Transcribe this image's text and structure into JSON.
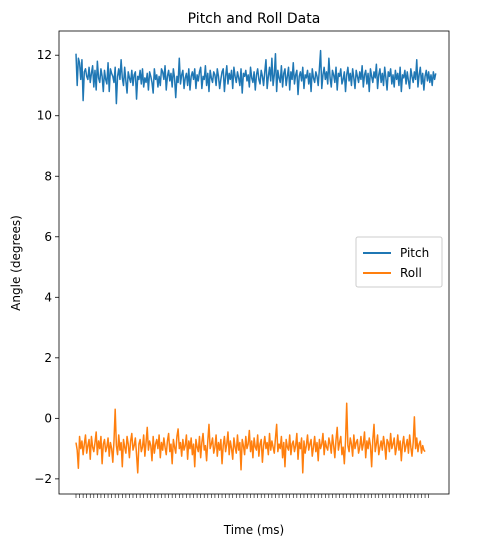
{
  "chart_data": {
    "type": "line",
    "title": "Pitch and Roll Data",
    "xlabel": "Time (ms)",
    "ylabel": "Angle (degrees)",
    "ylim": [
      -2.5,
      12.8
    ],
    "yticks": [
      "−2",
      "0",
      "2",
      "4",
      "6",
      "8",
      "10",
      "12"
    ],
    "ytick_values": [
      -2,
      0,
      2,
      4,
      6,
      8,
      10,
      12
    ],
    "x_count": 300,
    "legend_position": "center-right",
    "series": [
      {
        "name": "Pitch",
        "color": "#1f77b4",
        "values": [
          12.05,
          11.0,
          11.9,
          11.75,
          11.2,
          11.85,
          10.5,
          11.45,
          11.55,
          11.3,
          11.2,
          11.6,
          11.1,
          11.4,
          11.65,
          10.95,
          11.5,
          10.85,
          11.8,
          11.25,
          11.1,
          11.55,
          11.3,
          10.8,
          11.5,
          11.2,
          11.05,
          11.75,
          10.8,
          11.55,
          11.4,
          11.3,
          11.1,
          11.6,
          10.4,
          11.3,
          11.55,
          11.2,
          11.85,
          11.25,
          11.0,
          11.6,
          11.15,
          10.75,
          11.45,
          11.25,
          11.1,
          11.5,
          11.0,
          11.35,
          11.45,
          10.55,
          11.3,
          11.2,
          11.5,
          11.05,
          11.55,
          10.95,
          11.25,
          11.1,
          11.4,
          10.85,
          11.45,
          11.3,
          11.1,
          10.75,
          11.55,
          11.2,
          11.35,
          10.95,
          11.3,
          11.0,
          11.55,
          11.45,
          11.2,
          11.65,
          10.85,
          11.3,
          11.5,
          11.15,
          11.4,
          10.95,
          11.55,
          11.25,
          10.6,
          11.3,
          11.1,
          11.9,
          11.05,
          11.35,
          11.5,
          10.9,
          11.25,
          11.4,
          11.0,
          11.55,
          10.85,
          11.3,
          11.45,
          11.2,
          11.55,
          10.9,
          11.35,
          11.15,
          11.45,
          11.6,
          10.9,
          11.3,
          11.2,
          11.65,
          11.0,
          11.4,
          10.8,
          11.5,
          11.25,
          11.1,
          11.45,
          11.35,
          11.0,
          11.55,
          11.3,
          10.9,
          11.2,
          11.45,
          11.55,
          10.8,
          11.3,
          11.65,
          11.05,
          11.4,
          11.2,
          11.5,
          10.9,
          11.6,
          11.3,
          11.1,
          11.45,
          11.25,
          11.0,
          11.55,
          10.75,
          11.4,
          11.3,
          11.5,
          11.15,
          11.35,
          10.95,
          11.6,
          11.25,
          11.1,
          11.45,
          10.85,
          11.35,
          11.55,
          11.2,
          11.05,
          11.5,
          11.3,
          11.0,
          11.45,
          11.85,
          10.9,
          11.3,
          11.6,
          11.15,
          11.9,
          11.0,
          11.35,
          12.05,
          10.8,
          11.5,
          11.25,
          11.1,
          11.65,
          10.95,
          11.4,
          11.55,
          11.0,
          11.3,
          11.6,
          10.85,
          11.45,
          11.2,
          11.75,
          11.05,
          11.35,
          11.5,
          10.7,
          11.3,
          11.45,
          11.15,
          11.6,
          10.9,
          11.35,
          11.25,
          11.5,
          11.05,
          11.4,
          10.8,
          11.55,
          11.25,
          11.1,
          11.45,
          11.3,
          11.0,
          11.55,
          12.15,
          10.9,
          11.35,
          11.6,
          11.2,
          11.45,
          11.05,
          11.9,
          11.25,
          10.95,
          11.5,
          11.35,
          11.1,
          11.6,
          10.85,
          11.4,
          11.3,
          11.55,
          11.05,
          11.2,
          11.45,
          10.8,
          11.35,
          11.6,
          11.15,
          11.4,
          11.0,
          11.55,
          11.25,
          10.9,
          11.5,
          11.3,
          11.1,
          11.45,
          11.2,
          11.65,
          10.95,
          11.35,
          11.5,
          11.05,
          11.4,
          10.8,
          11.55,
          11.3,
          11.1,
          11.45,
          11.25,
          11.7,
          10.9,
          11.35,
          11.55,
          11.1,
          11.4,
          11.0,
          11.6,
          11.25,
          10.85,
          11.45,
          11.3,
          11.55,
          11.05,
          11.35,
          10.95,
          11.5,
          11.2,
          11.4,
          11.0,
          11.6,
          10.8,
          11.35,
          11.25,
          11.5,
          11.05,
          11.45,
          11.15,
          10.9,
          11.55,
          11.3,
          11.1,
          11.45,
          11.2,
          11.85,
          10.95,
          11.35,
          11.6,
          11.05,
          11.4,
          10.85,
          11.3,
          11.5,
          11.15,
          11.45,
          11.1,
          11.35,
          11.0,
          11.45,
          11.2,
          11.4
        ]
      },
      {
        "name": "Roll",
        "color": "#ff7f0e",
        "values": [
          -0.8,
          -1.05,
          -1.65,
          -0.6,
          -1.0,
          -0.75,
          -1.2,
          -0.85,
          -0.55,
          -1.15,
          -0.9,
          -0.7,
          -1.35,
          -0.6,
          -0.95,
          -1.1,
          -0.8,
          -0.45,
          -1.2,
          -0.75,
          -1.0,
          -0.6,
          -1.5,
          -0.85,
          -0.7,
          -1.1,
          -0.95,
          -0.65,
          -1.25,
          -0.8,
          -1.0,
          -1.45,
          -0.75,
          0.3,
          -0.9,
          -1.2,
          -0.55,
          -1.05,
          -0.8,
          -1.6,
          -0.7,
          -0.95,
          -1.15,
          -0.6,
          -0.85,
          -1.3,
          -0.75,
          -0.5,
          -1.05,
          -0.9,
          -0.65,
          -1.2,
          -1.8,
          -0.85,
          -0.7,
          -1.1,
          -0.95,
          -0.55,
          -1.25,
          -0.8,
          -0.3,
          -1.05,
          -0.75,
          -0.9,
          -1.4,
          -0.6,
          -1.15,
          -0.85,
          -0.7,
          -1.0,
          -0.55,
          -1.3,
          -0.8,
          -1.05,
          -0.65,
          -0.95,
          -1.2,
          -0.75,
          -0.5,
          -1.1,
          -0.85,
          -1.5,
          -0.7,
          -0.95,
          -1.15,
          -0.6,
          -0.35,
          -1.0,
          -0.8,
          -1.25,
          -0.7,
          -1.05,
          -0.9,
          -0.55,
          -1.35,
          -0.75,
          -1.0,
          -0.65,
          -1.2,
          -0.85,
          -1.6,
          -0.7,
          -0.95,
          -1.1,
          -0.6,
          -1.3,
          -0.8,
          -0.5,
          -1.05,
          -0.9,
          -1.4,
          -0.75,
          -0.2,
          -1.0,
          -0.85,
          -0.65,
          -1.15,
          -0.95,
          -0.55,
          -1.25,
          -0.8,
          -1.05,
          -0.7,
          -1.5,
          -0.9,
          -0.6,
          -1.1,
          -0.85,
          -0.45,
          -1.2,
          -0.75,
          -1.0,
          -1.35,
          -0.65,
          -0.95,
          -1.15,
          -0.55,
          -1.05,
          -0.8,
          -1.7,
          -0.7,
          -0.9,
          -1.2,
          -0.6,
          -1.0,
          -0.85,
          -0.4,
          -1.1,
          -0.75,
          -1.3,
          -0.65,
          -0.95,
          -1.05,
          -0.55,
          -1.25,
          -0.85,
          -0.7,
          -1.45,
          -0.9,
          -0.6,
          -1.0,
          -0.8,
          -1.2,
          -0.5,
          -1.05,
          -0.75,
          -0.95,
          -1.15,
          -0.65,
          -0.2,
          -1.1,
          -0.85,
          -1.0,
          -0.6,
          -1.3,
          -0.8,
          -1.6,
          -0.7,
          -0.95,
          -1.05,
          -0.55,
          -1.2,
          -0.85,
          -0.75,
          -1.1,
          -0.9,
          -0.5,
          -1.35,
          -0.8,
          -1.0,
          -0.65,
          -1.8,
          -0.75,
          -1.15,
          -0.9,
          -0.55,
          -1.05,
          -0.85,
          -0.7,
          -1.25,
          -0.95,
          -0.6,
          -1.1,
          -0.8,
          -1.4,
          -0.7,
          -1.0,
          -0.85,
          -0.5,
          -1.2,
          -0.75,
          -0.95,
          -1.05,
          -0.65,
          -0.85,
          -1.15,
          -0.55,
          -0.9,
          -1.3,
          -0.7,
          -0.3,
          -1.05,
          -0.8,
          -0.6,
          -1.2,
          -0.95,
          -1.5,
          -0.75,
          0.5,
          -0.9,
          -1.1,
          -0.65,
          -0.85,
          -1.25,
          -0.55,
          -1.0,
          -0.8,
          -0.7,
          -1.15,
          -0.95,
          -0.6,
          -1.05,
          -0.85,
          -0.45,
          -1.3,
          -0.75,
          -1.0,
          -0.65,
          -0.9,
          -1.6,
          -0.7,
          -0.2,
          -1.1,
          -0.85,
          -0.55,
          -1.2,
          -0.95,
          -0.75,
          -1.05,
          -0.6,
          -0.9,
          -1.35,
          -0.7,
          -0.8,
          -1.1,
          -0.5,
          -1.0,
          -0.85,
          -0.65,
          -1.2,
          -0.95,
          -0.55,
          -1.05,
          -0.75,
          -1.4,
          -0.85,
          -0.6,
          -1.1,
          -0.9,
          -0.7,
          -1.15,
          -0.55,
          -0.95,
          -1.25,
          -0.8,
          0.05,
          -1.0,
          -0.65,
          -1.1,
          -0.85,
          -0.75,
          -1.15,
          -0.9,
          -1.05,
          -1.1
        ]
      }
    ]
  }
}
